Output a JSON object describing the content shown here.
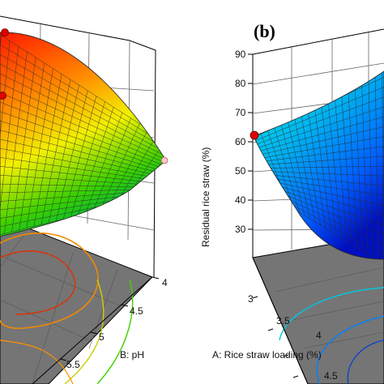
{
  "chart_data": [
    {
      "type": "surface",
      "panel": "",
      "xlabel": "B: pH",
      "x_ticks": [
        "4",
        "4.5",
        "5",
        "5.5"
      ],
      "colormap": "jet",
      "markers": "red and light-pink design points"
    },
    {
      "type": "surface",
      "panel": "(b)",
      "xlabel": "A: Rice straw loading (%)",
      "ylabel": "Residual rice straw   (%)",
      "x_ticks": [
        "3",
        "3.5",
        "4",
        "4.5"
      ],
      "z_ticks": [
        "90",
        "80",
        "70",
        "60",
        "50",
        "40",
        "30"
      ],
      "zlim": [
        30,
        90
      ],
      "colormap": "jet",
      "markers": "red design point at minimum loading"
    }
  ]
}
